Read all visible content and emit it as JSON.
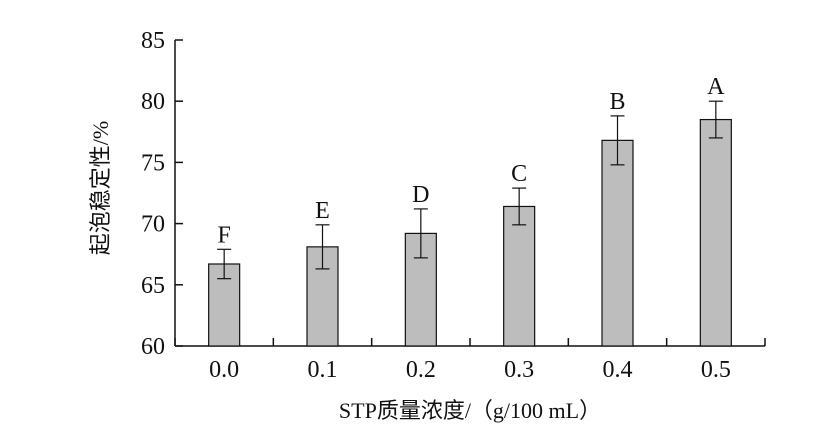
{
  "chart_data": {
    "type": "bar",
    "title": "",
    "xlabel": "STP质量浓度/（g/100 mL）",
    "ylabel": "起泡稳定性/%",
    "categories": [
      "0.0",
      "0.1",
      "0.2",
      "0.3",
      "0.4",
      "0.5"
    ],
    "values": [
      66.7,
      68.1,
      69.2,
      71.4,
      76.8,
      78.5
    ],
    "errors": [
      1.2,
      1.8,
      2.0,
      1.5,
      2.0,
      1.5
    ],
    "significance": [
      "F",
      "E",
      "D",
      "C",
      "B",
      "A"
    ],
    "ylim": [
      60,
      85
    ],
    "yticks": [
      60,
      65,
      70,
      75,
      80,
      85
    ],
    "grid": false,
    "legend": "none",
    "bar_color": "#bdbdbd",
    "axis_color": "#111111"
  }
}
